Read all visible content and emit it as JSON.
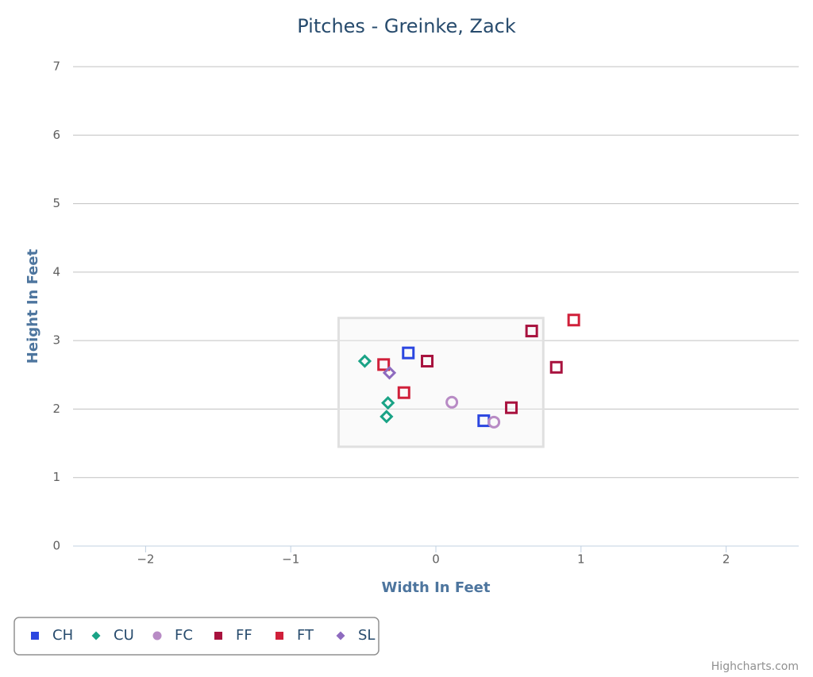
{
  "chart_data": {
    "type": "scatter",
    "title": "Pitches - Greinke, Zack",
    "x_label": "Width In Feet",
    "y_label": "Height In Feet",
    "xlim": [
      -2.5,
      2.5
    ],
    "ylim": [
      0,
      7
    ],
    "xticks": [
      {
        "value": -2,
        "label": "−2"
      },
      {
        "value": -1,
        "label": "−1"
      },
      0,
      1,
      2
    ],
    "yticks": [
      0,
      1,
      2,
      3,
      4,
      5,
      6,
      7
    ],
    "grid": true,
    "legend": "bottom-left",
    "strike_zone": {
      "x": [
        -0.67,
        0.74
      ],
      "y": [
        1.45,
        3.33
      ]
    },
    "series": [
      {
        "name": "CH",
        "color": "#2b46e0",
        "symbol": "square",
        "x": [
          -0.19,
          0.33
        ],
        "values": [
          2.82,
          1.83
        ]
      },
      {
        "name": "CU",
        "color": "#1aa386",
        "symbol": "diamond",
        "x": [
          -0.49,
          -0.33,
          -0.34
        ],
        "values": [
          2.7,
          2.09,
          1.89
        ]
      },
      {
        "name": "FC",
        "color": "#b88bc5",
        "symbol": "circle",
        "x": [
          0.11,
          0.4
        ],
        "values": [
          2.1,
          1.81
        ]
      },
      {
        "name": "FF",
        "color": "#a8123e",
        "symbol": "square",
        "x": [
          0.66,
          0.83,
          0.52,
          -0.06
        ],
        "values": [
          3.14,
          2.61,
          2.02,
          2.7
        ]
      },
      {
        "name": "FT",
        "color": "#d0203a",
        "symbol": "square",
        "x": [
          0.95,
          -0.36,
          -0.22
        ],
        "values": [
          3.3,
          2.65,
          2.24
        ]
      },
      {
        "name": "SL",
        "color": "#8e6bbf",
        "symbol": "diamond",
        "x": [
          -0.32
        ],
        "values": [
          2.53
        ]
      }
    ],
    "credits": "Highcharts.com"
  }
}
